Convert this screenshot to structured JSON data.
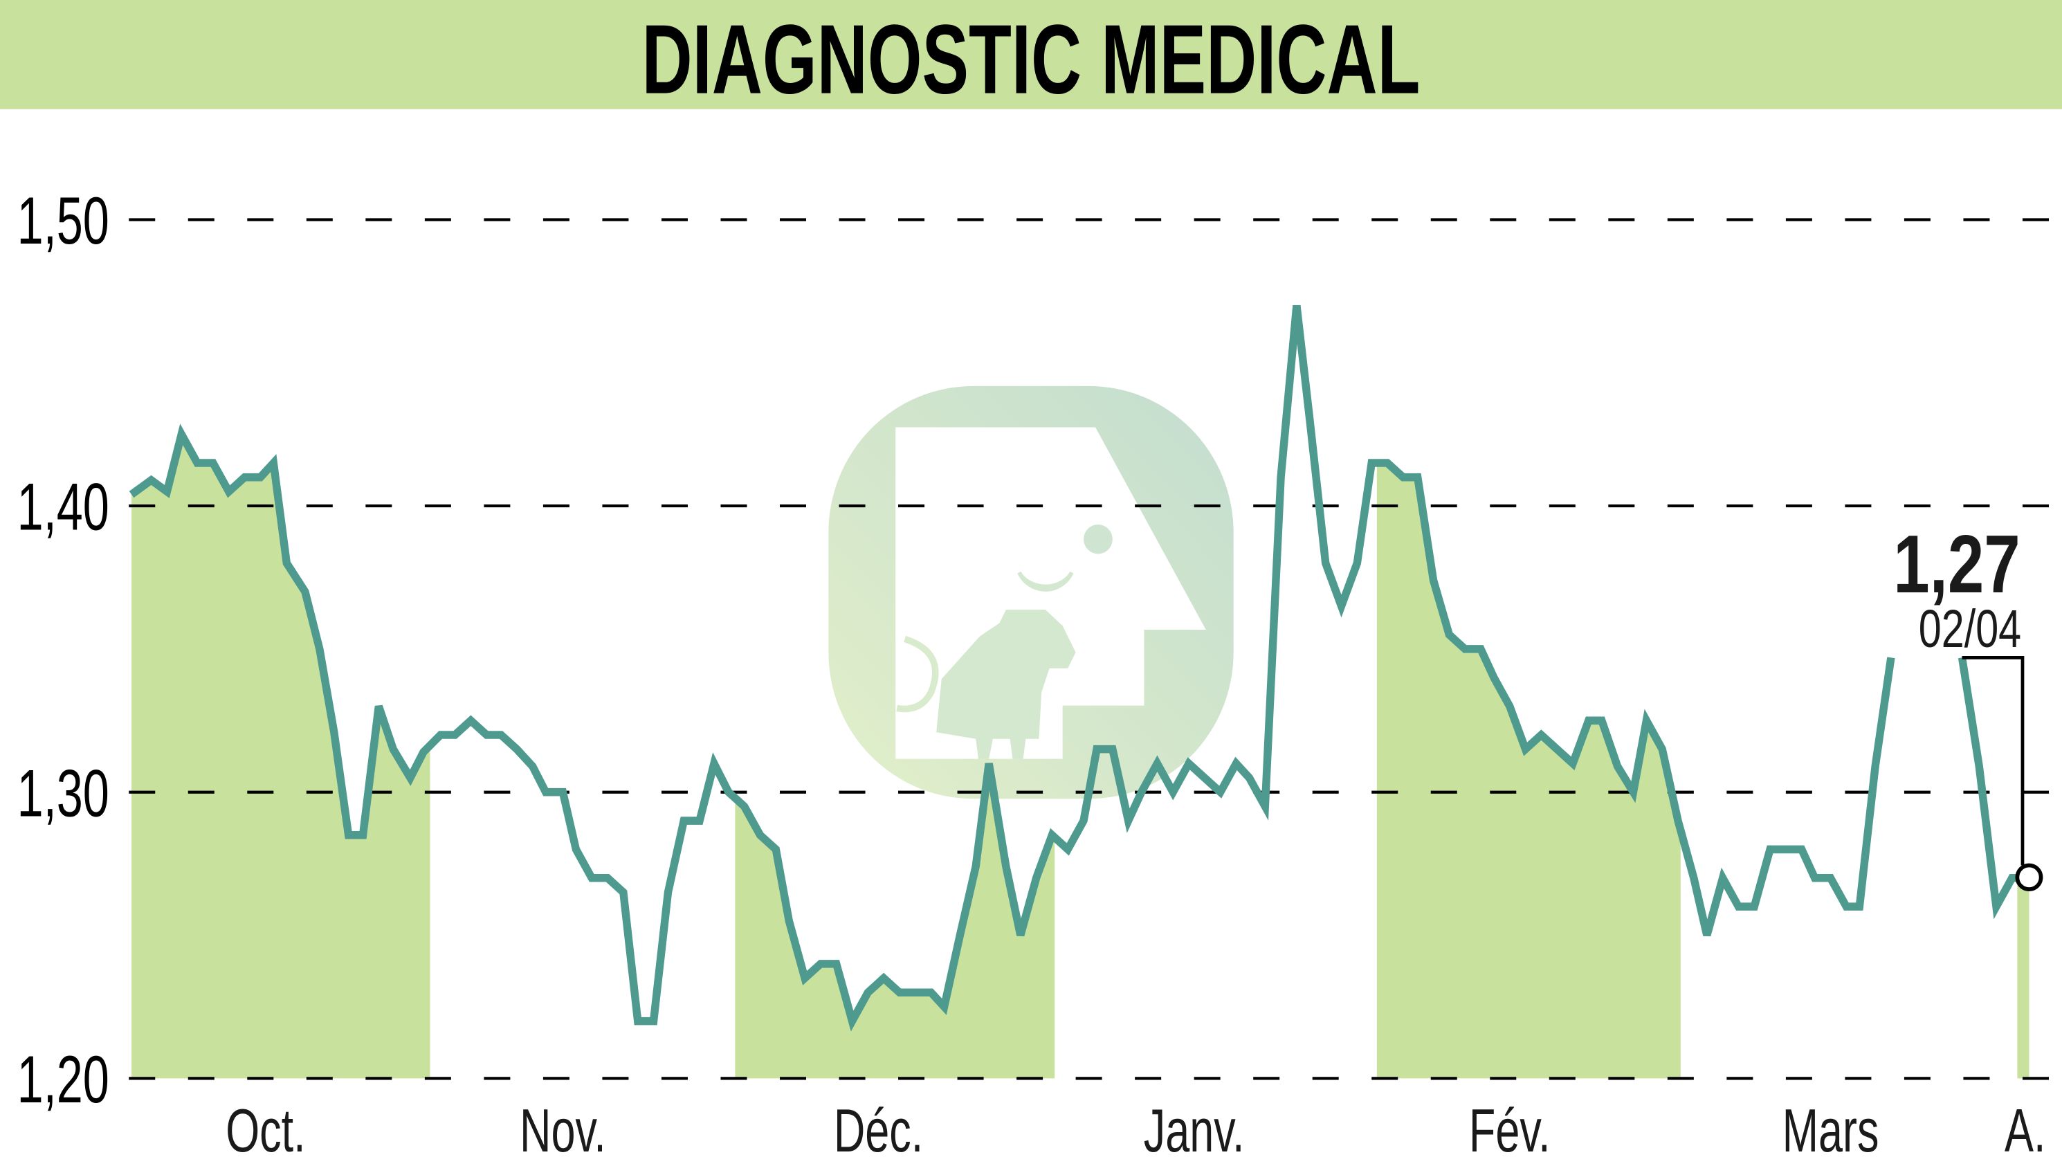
{
  "header": {
    "title": "DIAGNOSTIC MEDICAL",
    "banner_color": "#c8e29e"
  },
  "colors": {
    "line": "#4e9a8f",
    "fill": "#c8e29e",
    "grid": "#000000",
    "text": "#000000",
    "watermark": "#c9e1cc"
  },
  "last_value": {
    "value_label": "1,27",
    "date_label": "02/04"
  },
  "watermark": {
    "icon": "bull-logo-icon"
  },
  "chart_data": {
    "type": "line",
    "title": "DIAGNOSTIC MEDICAL",
    "xlabel": "",
    "ylabel": "",
    "ylim": [
      1.2,
      1.5
    ],
    "yticks": [
      1.2,
      1.3,
      1.4,
      1.5
    ],
    "ytick_labels": [
      "1,20",
      "1,30",
      "1,40",
      "1,50"
    ],
    "grid": "horizontal dashed",
    "legend": "none",
    "xtick_labels": [
      "Oct.",
      "Nov.",
      "Déc.",
      "Janv.",
      "Fév.",
      "Mars",
      "A."
    ],
    "shaded_months": [
      "Oct.",
      "Déc.",
      "Fév.",
      "A."
    ],
    "annotation": {
      "value": 1.27,
      "label": "1,27",
      "date": "02/04"
    },
    "series": [
      {
        "name": "DIAGNOSTIC MEDICAL",
        "x": [
          100,
          115,
          127,
          138,
          150,
          162,
          174,
          186,
          198,
          208,
          218,
          232,
          243,
          254,
          265,
          276,
          288,
          299,
          312,
          322,
          335,
          346,
          358,
          370,
          381,
          393,
          405,
          415,
          428,
          438,
          450,
          462,
          474,
          485,
          497,
          508,
          520,
          532,
          543,
          554,
          566,
          578,
          590,
          600,
          612,
          624,
          636,
          648,
          660,
          672,
          684,
          696,
          708,
          718,
          730,
          742,
          752,
          765,
          776,
          788,
          800,
          812,
          824,
          834,
          846,
          858,
          868,
          880,
          892,
          904,
          916,
          928,
          940,
          950,
          962,
          974,
          986,
          996,
          1008,
          1020,
          1032,
          1043,
          1055,
          1067,
          1078,
          1090,
          1102,
          1114,
          1126,
          1136,
          1148,
          1160,
          1172,
          1184,
          1196,
          1208,
          1218,
          1230,
          1242,
          1252,
          1264,
          1276,
          1288,
          1298,
          1310,
          1322,
          1334,
          1346,
          1358,
          1370,
          1380,
          1392,
          1404,
          1414,
          1426,
          1438,
          null,
          1492,
          1505,
          1518,
          1530,
          1543
        ],
        "values": [
          1.404,
          1.409,
          1.405,
          1.425,
          1.415,
          1.415,
          1.405,
          1.41,
          1.41,
          1.415,
          1.38,
          1.37,
          1.35,
          1.321,
          1.285,
          1.285,
          1.33,
          1.315,
          1.305,
          1.314,
          1.32,
          1.32,
          1.325,
          1.32,
          1.32,
          1.315,
          1.309,
          1.3,
          1.3,
          1.28,
          1.27,
          1.27,
          1.265,
          1.22,
          1.22,
          1.265,
          1.29,
          1.29,
          1.31,
          1.3,
          1.295,
          1.285,
          1.28,
          1.255,
          1.235,
          1.24,
          1.24,
          1.22,
          1.23,
          1.235,
          1.23,
          1.23,
          1.23,
          1.225,
          1.25,
          1.274,
          1.31,
          1.274,
          1.25,
          1.27,
          1.285,
          1.28,
          1.29,
          1.315,
          1.315,
          1.29,
          1.3,
          1.31,
          1.3,
          1.31,
          1.305,
          1.3,
          1.31,
          1.305,
          1.295,
          1.41,
          1.47,
          1.43,
          1.38,
          1.365,
          1.38,
          1.415,
          1.415,
          1.41,
          1.41,
          1.374,
          1.355,
          1.35,
          1.35,
          1.34,
          1.33,
          1.315,
          1.32,
          1.315,
          1.31,
          1.325,
          1.325,
          1.309,
          1.3,
          1.325,
          1.315,
          1.29,
          1.27,
          1.25,
          1.27,
          1.26,
          1.26,
          1.28,
          1.28,
          1.28,
          1.27,
          1.27,
          1.26,
          1.26,
          1.309,
          1.347,
          null,
          1.347,
          1.309,
          1.26,
          1.27,
          1.27
        ]
      }
    ]
  }
}
